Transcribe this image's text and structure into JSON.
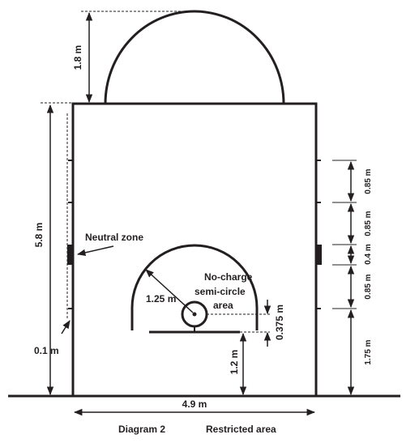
{
  "labels": {
    "top_height": "1.8 m",
    "left_length": "5.8 m",
    "left_offset": "0.1 m",
    "bottom_width": "4.9 m",
    "right_seg1": "0.85 m",
    "right_seg2": "0.85 m",
    "right_seg3": "0.4 m",
    "right_seg4": "0.85 m",
    "right_seg5": "1.75 m",
    "radius": "1.25 m",
    "circle_offset": "0.375 m",
    "backboard_dist": "1.2 m",
    "neutral_zone": "Neutral zone",
    "no_charge_line1": "No-charge",
    "no_charge_line2": "semi-circle",
    "no_charge_line3": "area"
  },
  "caption": {
    "number": "Diagram 2",
    "title": "Restricted area"
  },
  "colors": {
    "ink": "#231f20",
    "background": "#ffffff"
  }
}
